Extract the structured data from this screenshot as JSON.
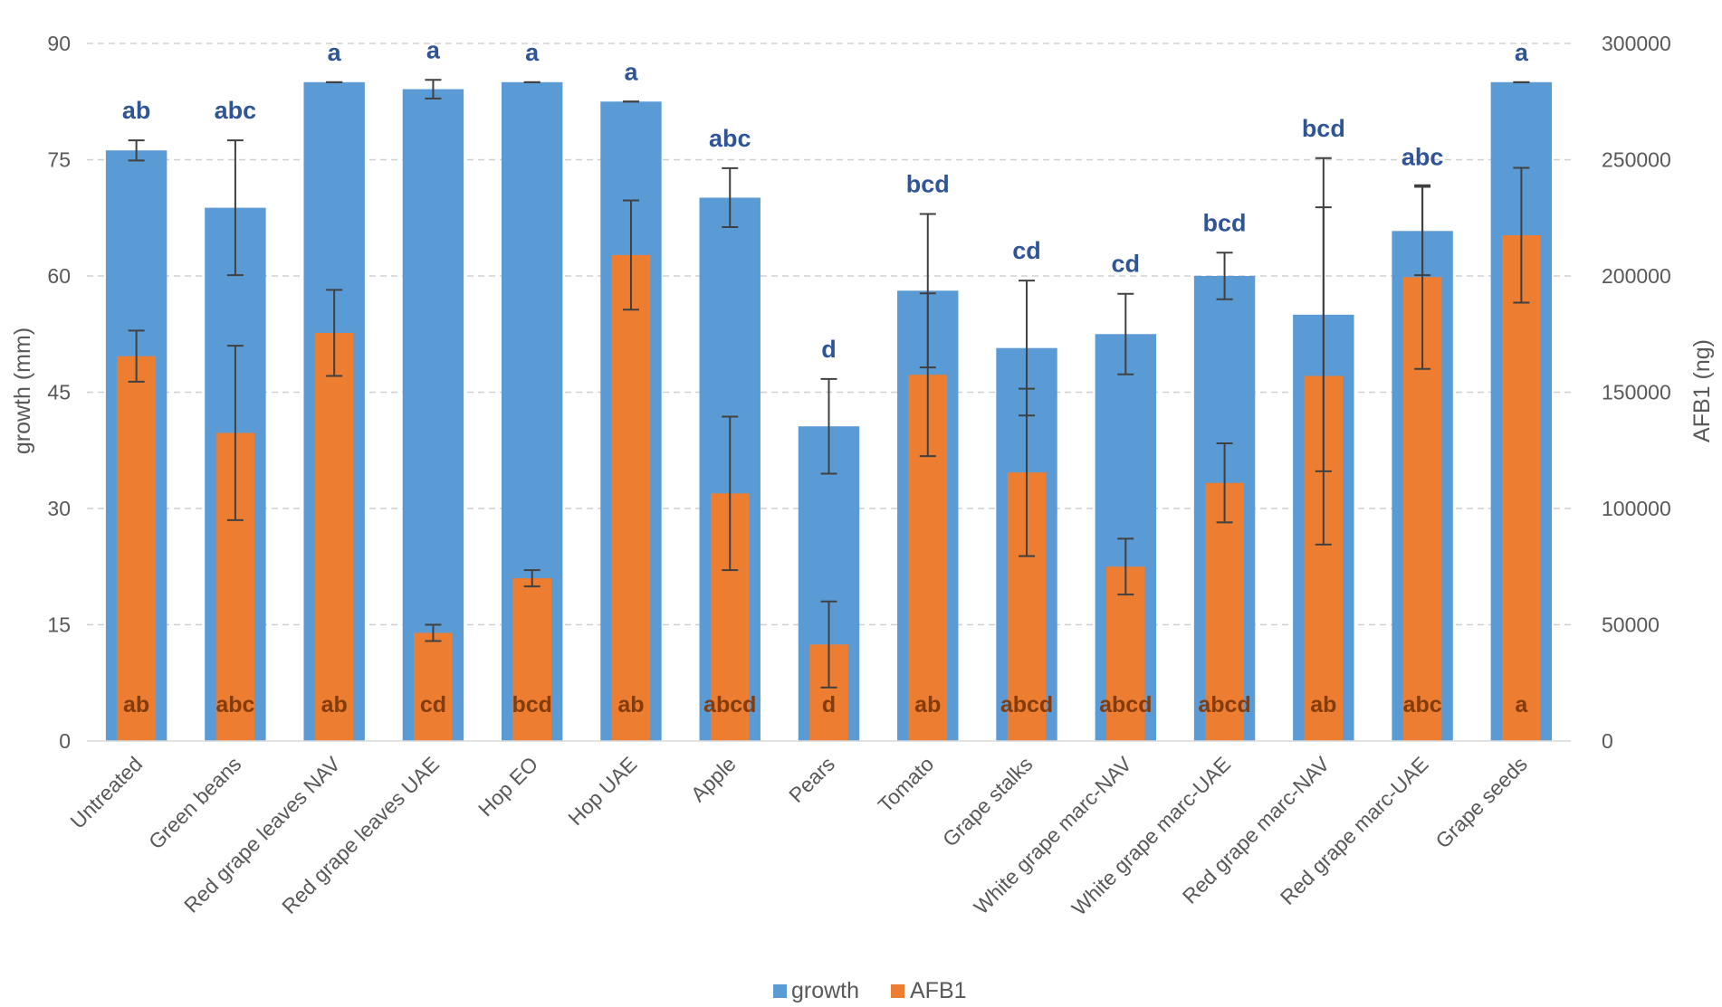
{
  "chart_data": {
    "type": "bar",
    "title": "",
    "xlabel": "",
    "ylabel": "growth (mm)",
    "y2label": "AFB1 (ng)",
    "ylim": [
      0,
      90
    ],
    "y2lim": [
      0,
      300000
    ],
    "yticks": [
      0,
      15,
      30,
      45,
      60,
      75,
      90
    ],
    "y2ticks": [
      0,
      50000,
      100000,
      150000,
      200000,
      250000,
      300000
    ],
    "grid": true,
    "legend_position": "bottom",
    "categories": [
      "Untreated",
      "Green beans",
      "Red grape leaves NAV",
      "Red grape leaves UAE",
      "Hop EO",
      "Hop UAE",
      "Apple",
      "Pears",
      "Tomato",
      "Grape stalks",
      "White grape marc-NAV",
      "White grape marc-UAE",
      "Red grape marc-NAV",
      "Red grape marc-UAE",
      "Grape seeds"
    ],
    "series": [
      {
        "name": "growth",
        "axis": "left",
        "color": "#5B9BD5",
        "values": [
          76.2,
          68.8,
          85,
          84.1,
          85,
          82.5,
          70.1,
          40.6,
          58.1,
          50.7,
          52.5,
          60,
          55,
          65.8,
          85
        ],
        "errors": [
          1.3,
          8.7,
          0,
          1.2,
          0,
          0,
          3.8,
          6.1,
          9.9,
          8.7,
          5.2,
          3.0,
          20.2,
          5.7,
          0
        ],
        "letters": [
          "ab",
          "abc",
          "a",
          "a",
          "a",
          "a",
          "abc",
          "d",
          "bcd",
          "cd",
          "cd",
          "bcd",
          "bcd",
          "abc",
          "a"
        ]
      },
      {
        "name": "AFB1",
        "axis": "right",
        "color": "#ED7D31",
        "values": [
          165500,
          132500,
          175500,
          46500,
          70000,
          209000,
          106500,
          41500,
          157500,
          115500,
          75000,
          111000,
          157000,
          199500,
          217500
        ],
        "errors": [
          11000,
          37500,
          18500,
          3500,
          3500,
          23500,
          33000,
          18500,
          35000,
          36000,
          12000,
          17000,
          72500,
          39500,
          29000
        ],
        "letters": [
          "ab",
          "abc",
          "ab",
          "cd",
          "bcd",
          "ab",
          "abcd",
          "d",
          "ab",
          "abcd",
          "abcd",
          "abcd",
          "ab",
          "abc",
          "a"
        ]
      }
    ]
  },
  "legend": {
    "growth": "growth",
    "afb1": "AFB1"
  }
}
